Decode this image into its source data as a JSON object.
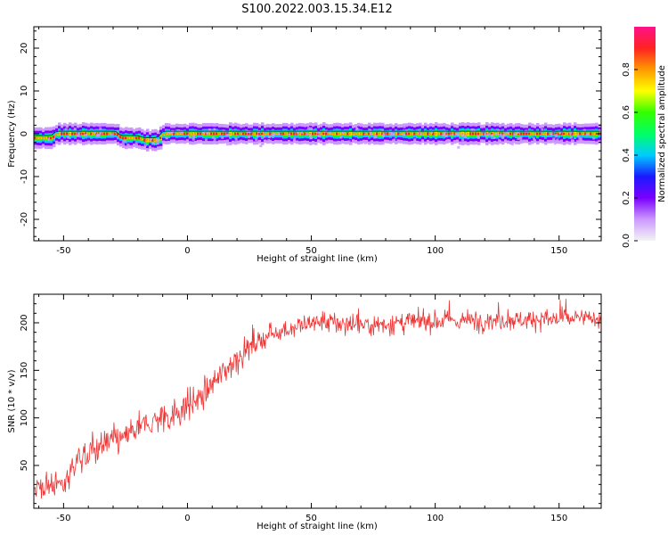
{
  "title": "S100.2022.003.15.34.E12",
  "colors": {
    "snr_line": "#ee3333",
    "axis": "#000000",
    "band_outline": "#00aa44"
  },
  "chart_data": [
    {
      "type": "heatmap",
      "xlabel": "Height of straight line (km)",
      "ylabel": "Frequency (Hz)",
      "xlim": [
        -62,
        167
      ],
      "ylim": [
        -25,
        25
      ],
      "xticks": [
        -50,
        0,
        50,
        100,
        150
      ],
      "yticks": [
        -20,
        -10,
        0,
        10,
        20
      ],
      "colorbar": {
        "label": "Normalized spectral amplitude",
        "range": [
          0,
          1
        ],
        "ticks": [
          "0.0",
          "0.2",
          "0.4",
          "0.6",
          "0.8"
        ],
        "colormap": [
          "#f4f4f4",
          "#cc99ff",
          "#7a00ff",
          "#1a1aff",
          "#00ccff",
          "#00ff66",
          "#33ff00",
          "#ffff00",
          "#ff9900",
          "#ff2222",
          "#ff1188"
        ]
      },
      "center_frequency_track": [
        {
          "x": -62,
          "y": -1
        },
        {
          "x": -55,
          "y": -1
        },
        {
          "x": -53,
          "y": 0
        },
        {
          "x": -29,
          "y": 0
        },
        {
          "x": -27,
          "y": -1
        },
        {
          "x": -20,
          "y": -1
        },
        {
          "x": -18,
          "y": -1.5
        },
        {
          "x": -12,
          "y": -1.5
        },
        {
          "x": -10,
          "y": 0
        },
        {
          "x": 167,
          "y": 0
        }
      ]
    },
    {
      "type": "line",
      "xlabel": "Height of straight line (km)",
      "ylabel": "SNR (10 * v/v)",
      "xlim": [
        -62,
        167
      ],
      "ylim": [
        5,
        230
      ],
      "xticks": [
        -50,
        0,
        50,
        100,
        150
      ],
      "yticks": [
        50,
        100,
        150,
        200
      ],
      "series": [
        {
          "trend": [
            {
              "x": -62,
              "y": 25
            },
            {
              "x": -50,
              "y": 30
            },
            {
              "x": -45,
              "y": 55
            },
            {
              "x": -35,
              "y": 70
            },
            {
              "x": -25,
              "y": 80
            },
            {
              "x": -15,
              "y": 95
            },
            {
              "x": -5,
              "y": 105
            },
            {
              "x": 5,
              "y": 120
            },
            {
              "x": 15,
              "y": 150
            },
            {
              "x": 25,
              "y": 175
            },
            {
              "x": 35,
              "y": 190
            },
            {
              "x": 50,
              "y": 200
            },
            {
              "x": 75,
              "y": 198
            },
            {
              "x": 100,
              "y": 202
            },
            {
              "x": 125,
              "y": 203
            },
            {
              "x": 150,
              "y": 204
            },
            {
              "x": 167,
              "y": 205
            }
          ],
          "noise_amplitude": [
            {
              "x": -62,
              "y": 12
            },
            {
              "x": -20,
              "y": 12
            },
            {
              "x": 0,
              "y": 14
            },
            {
              "x": 30,
              "y": 10
            },
            {
              "x": 167,
              "y": 8
            }
          ]
        }
      ]
    }
  ]
}
